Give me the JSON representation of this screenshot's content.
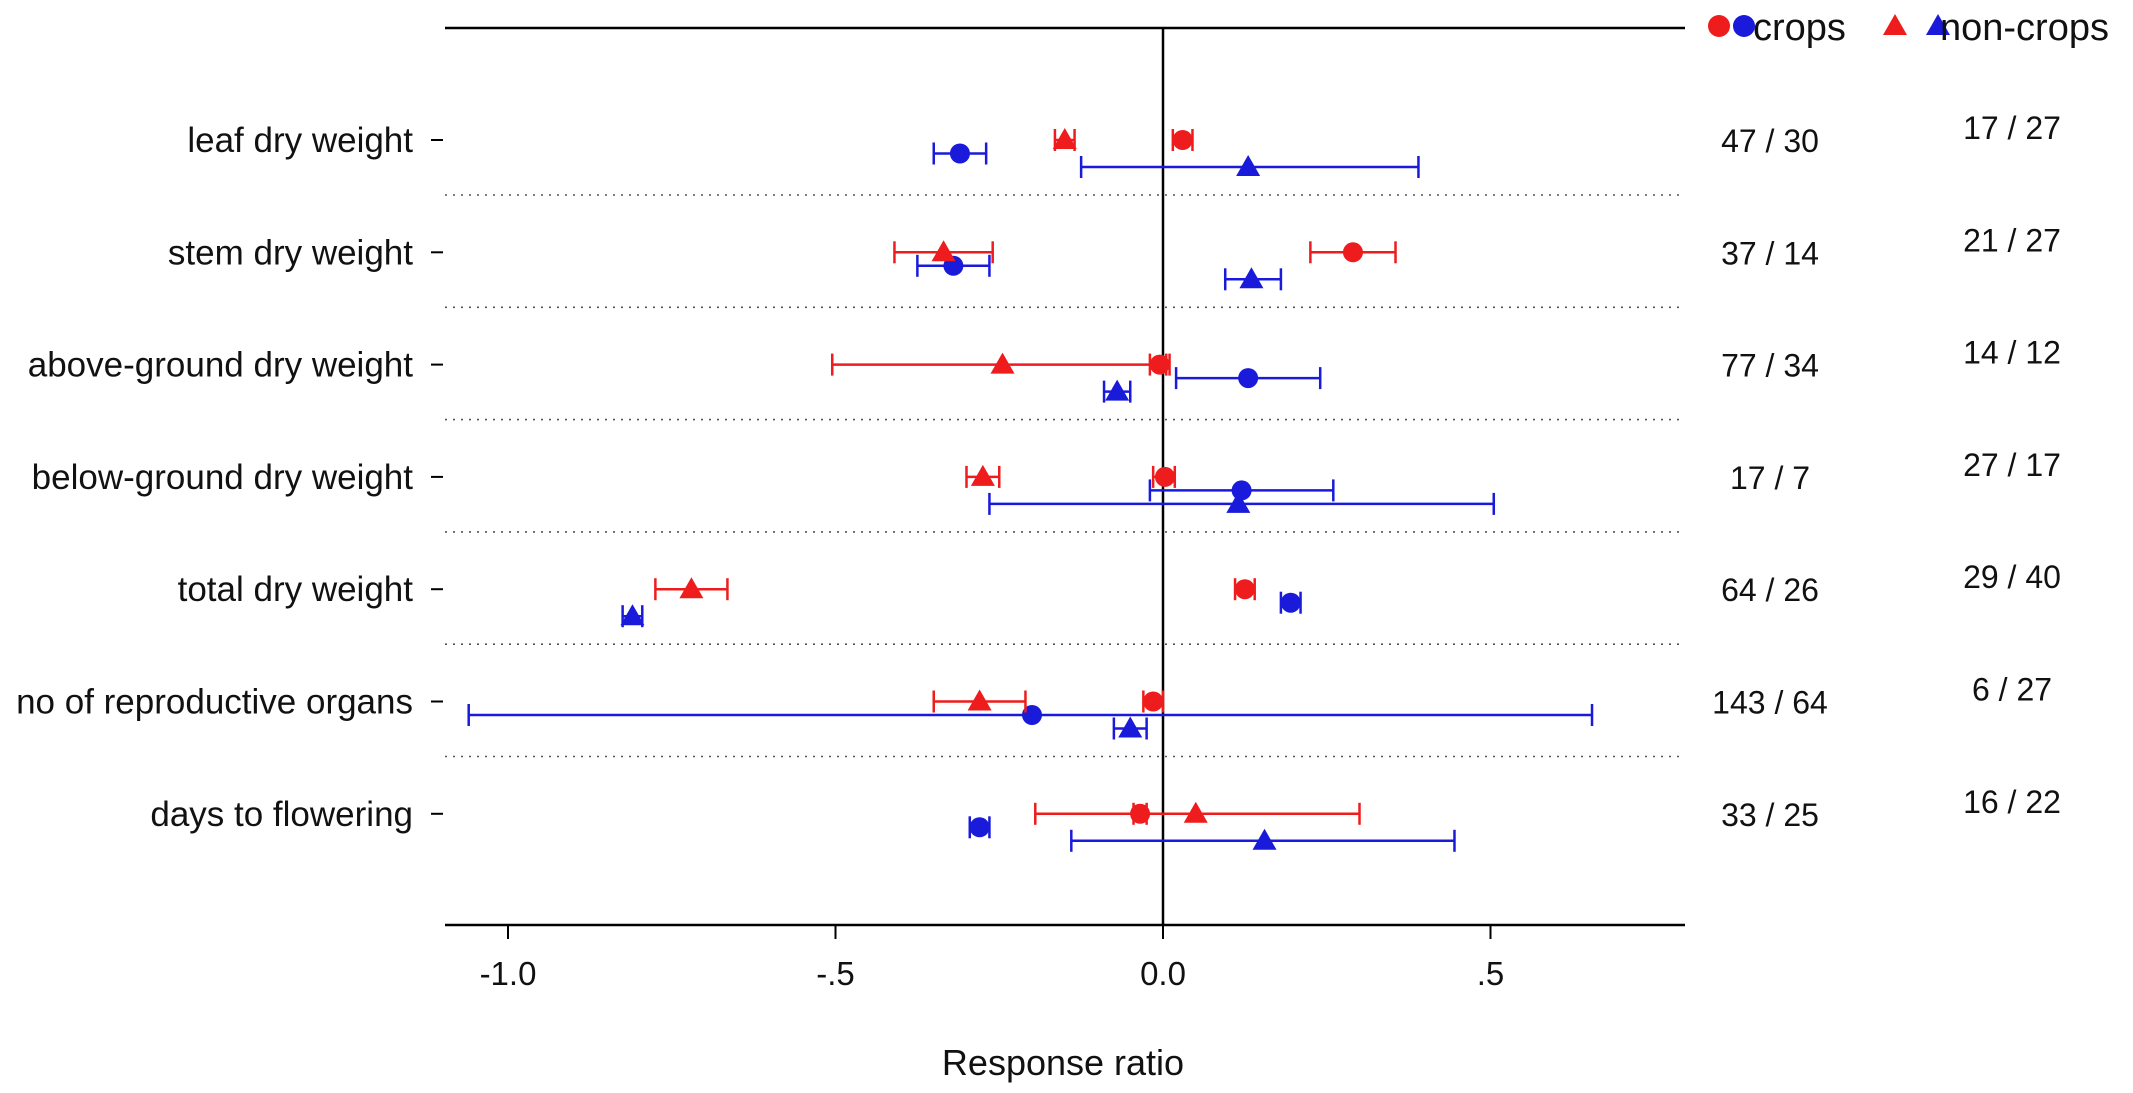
{
  "chart_data": {
    "type": "forest",
    "title": "",
    "xlabel": "Response ratio",
    "ylabel": "",
    "xlim": [
      -1.1,
      0.8
    ],
    "x_ticks": [
      -1.0,
      -0.5,
      0.0,
      0.5
    ],
    "x_tick_labels": [
      "-1.0",
      "-.5",
      "0.0",
      ".5"
    ],
    "legend": {
      "position": "top-right",
      "entries": [
        {
          "label": "crops",
          "marker": "circle",
          "colors": [
            "#ee1c1c",
            "#1a1adb"
          ]
        },
        {
          "label": "non-crops",
          "marker": "triangle",
          "colors": [
            "#ee1c1c",
            "#1a1adb"
          ]
        }
      ]
    },
    "colors": {
      "red": "#ee1c1c",
      "blue": "#1a1adb",
      "axis": "#000000",
      "separator": "#555555"
    },
    "categories": [
      "leaf dry weight",
      "stem dry weight",
      "above-ground dry weight",
      "below-ground dry weight",
      "total dry weight",
      "no of reproductive organs",
      "days to flowering"
    ],
    "counts_crops": [
      "47 / 30",
      "37 / 14",
      "77 / 34",
      "17 / 7",
      "64 / 26",
      "143 / 64",
      "33 / 25"
    ],
    "counts_noncrops": [
      "17 / 27",
      "21 / 27",
      "14 / 12",
      "27 / 17",
      "29 / 40",
      "6 / 27",
      "16 / 22"
    ],
    "series": [
      {
        "name": "crops red",
        "marker": "circle",
        "color": "red",
        "offset": 0,
        "values": [
          0.03,
          0.29,
          -0.005,
          0.003,
          0.125,
          -0.015,
          -0.035
        ],
        "ci_low": [
          0.015,
          0.225,
          -0.02,
          -0.015,
          0.11,
          -0.03,
          -0.045
        ],
        "ci_high": [
          0.045,
          0.355,
          0.01,
          0.018,
          0.14,
          0.0,
          -0.025
        ]
      },
      {
        "name": "crops blue",
        "marker": "circle",
        "color": "blue",
        "offset": 1,
        "values": [
          -0.31,
          -0.32,
          0.13,
          0.12,
          0.195,
          -0.2,
          -0.28
        ],
        "ci_low": [
          -0.35,
          -0.375,
          0.02,
          -0.02,
          0.18,
          -1.06,
          -0.295
        ],
        "ci_high": [
          -0.27,
          -0.265,
          0.24,
          0.26,
          0.21,
          0.655,
          -0.265
        ]
      },
      {
        "name": "non-crops red",
        "marker": "triangle",
        "color": "red",
        "offset": 0,
        "values": [
          -0.15,
          -0.335,
          -0.245,
          -0.275,
          -0.72,
          -0.28,
          0.05
        ],
        "ci_low": [
          -0.165,
          -0.41,
          -0.505,
          -0.3,
          -0.775,
          -0.35,
          -0.195
        ],
        "ci_high": [
          -0.135,
          -0.26,
          0.005,
          -0.25,
          -0.665,
          -0.21,
          0.3
        ]
      },
      {
        "name": "non-crops blue",
        "marker": "triangle",
        "color": "blue",
        "offset": 2,
        "values": [
          0.13,
          0.135,
          -0.07,
          0.115,
          -0.81,
          -0.05,
          0.155
        ],
        "ci_low": [
          -0.125,
          0.095,
          -0.09,
          -0.265,
          -0.825,
          -0.075,
          -0.14
        ],
        "ci_high": [
          0.39,
          0.18,
          -0.05,
          0.505,
          -0.795,
          -0.025,
          0.445
        ]
      }
    ]
  }
}
